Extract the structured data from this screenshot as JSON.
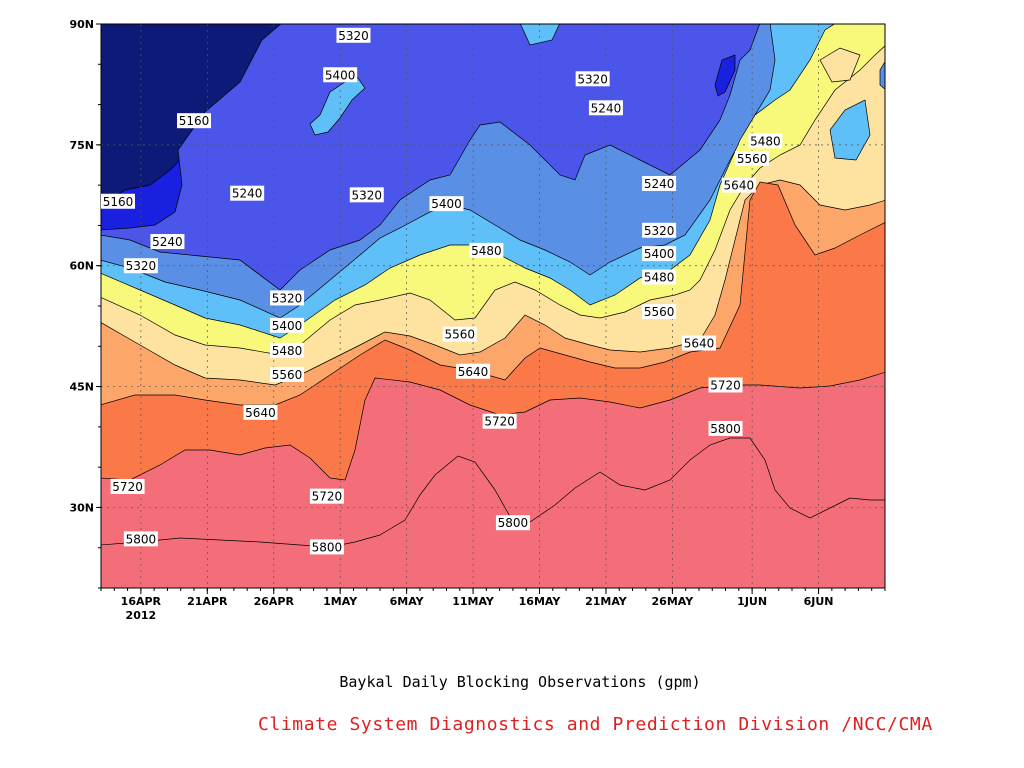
{
  "chart_data": {
    "type": "area",
    "title": "Baykal Daily Blocking Observations (gpm)",
    "credit": "Climate System Diagnostics and Prediction Division /NCC/CMA",
    "yaxis": {
      "range": [
        20,
        90
      ],
      "ticks": [
        {
          "value": 30,
          "label": "30N"
        },
        {
          "value": 45,
          "label": "45N"
        },
        {
          "value": 60,
          "label": "60N"
        },
        {
          "value": 75,
          "label": "75N"
        },
        {
          "value": 90,
          "label": "90N"
        }
      ]
    },
    "xaxis": {
      "range": [
        "2012-04-13",
        "2012-06-11"
      ],
      "ticks": [
        {
          "date": "2012-04-16",
          "label": "16APR",
          "sublabel": "2012"
        },
        {
          "date": "2012-04-21",
          "label": "21APR"
        },
        {
          "date": "2012-04-26",
          "label": "26APR"
        },
        {
          "date": "2012-05-01",
          "label": "1MAY"
        },
        {
          "date": "2012-05-06",
          "label": "6MAY"
        },
        {
          "date": "2012-05-11",
          "label": "11MAY"
        },
        {
          "date": "2012-05-16",
          "label": "16MAY"
        },
        {
          "date": "2012-05-21",
          "label": "21MAY"
        },
        {
          "date": "2012-05-26",
          "label": "26MAY"
        },
        {
          "date": "2012-06-01",
          "label": "1JUN"
        },
        {
          "date": "2012-06-06",
          "label": "6JUN"
        }
      ]
    },
    "grid": true,
    "levels": [
      5160,
      5240,
      5320,
      5400,
      5480,
      5560,
      5640,
      5720,
      5800
    ],
    "fill_colors": {
      "below_5160": "#0e1a78",
      "5160": "#1a20e0",
      "5240": "#4b55ea",
      "5320": "#5a8fe6",
      "5400": "#5fbff8",
      "5480": "#f8f87a",
      "5560": "#fde2a0",
      "5640": "#fca66a",
      "5720": "#fb7848",
      "5800": "#f46e7a"
    },
    "contour_labels": [
      {
        "text": "5160",
        "date": "2012-04-13",
        "lat": 68
      },
      {
        "text": "5160",
        "date": "2012-04-20",
        "lat": 78
      },
      {
        "text": "5240",
        "date": "2012-04-18",
        "lat": 63
      },
      {
        "text": "5240",
        "date": "2012-04-24",
        "lat": 69
      },
      {
        "text": "5320",
        "date": "2012-04-16",
        "lat": 60
      },
      {
        "text": "5320",
        "date": "2012-04-27",
        "lat": 56
      },
      {
        "text": "5400",
        "date": "2012-04-27",
        "lat": 52.6
      },
      {
        "text": "5480",
        "date": "2012-04-27",
        "lat": 49.5
      },
      {
        "text": "5560",
        "date": "2012-04-27",
        "lat": 46.5
      },
      {
        "text": "5640",
        "date": "2012-04-25",
        "lat": 41.8
      },
      {
        "text": "5720",
        "date": "2012-04-15",
        "lat": 32.6
      },
      {
        "text": "5800",
        "date": "2012-04-16",
        "lat": 26.1
      },
      {
        "text": "5800",
        "date": "2012-04-30",
        "lat": 25.1
      },
      {
        "text": "5720",
        "date": "2012-04-30",
        "lat": 31.4
      },
      {
        "text": "5320",
        "date": "2012-05-02",
        "lat": 88.6
      },
      {
        "text": "5400",
        "date": "2012-05-01",
        "lat": 83.7
      },
      {
        "text": "5320",
        "date": "2012-05-03",
        "lat": 68.8
      },
      {
        "text": "5400",
        "date": "2012-05-09",
        "lat": 67.7
      },
      {
        "text": "5480",
        "date": "2012-05-12",
        "lat": 61.9
      },
      {
        "text": "5560",
        "date": "2012-05-10",
        "lat": 51.5
      },
      {
        "text": "5640",
        "date": "2012-05-11",
        "lat": 46.9
      },
      {
        "text": "5720",
        "date": "2012-05-13",
        "lat": 40.7
      },
      {
        "text": "5800",
        "date": "2012-05-14",
        "lat": 28.1
      },
      {
        "text": "5320",
        "date": "2012-05-20",
        "lat": 83.2
      },
      {
        "text": "5240",
        "date": "2012-05-21",
        "lat": 79.6
      },
      {
        "text": "5240",
        "date": "2012-05-25",
        "lat": 70.2
      },
      {
        "text": "5320",
        "date": "2012-05-25",
        "lat": 64.4
      },
      {
        "text": "5400",
        "date": "2012-05-25",
        "lat": 61.5
      },
      {
        "text": "5480",
        "date": "2012-05-25",
        "lat": 58.6
      },
      {
        "text": "5560",
        "date": "2012-05-25",
        "lat": 54.3
      },
      {
        "text": "5640",
        "date": "2012-05-28",
        "lat": 50.4
      },
      {
        "text": "5720",
        "date": "2012-05-30",
        "lat": 45.2
      },
      {
        "text": "5800",
        "date": "2012-05-30",
        "lat": 39.8
      },
      {
        "text": "5480",
        "date": "2012-06-02",
        "lat": 75.5
      },
      {
        "text": "5560",
        "date": "2012-06-01",
        "lat": 73.3
      },
      {
        "text": "5640",
        "date": "2012-05-31",
        "lat": 70.0
      }
    ]
  }
}
